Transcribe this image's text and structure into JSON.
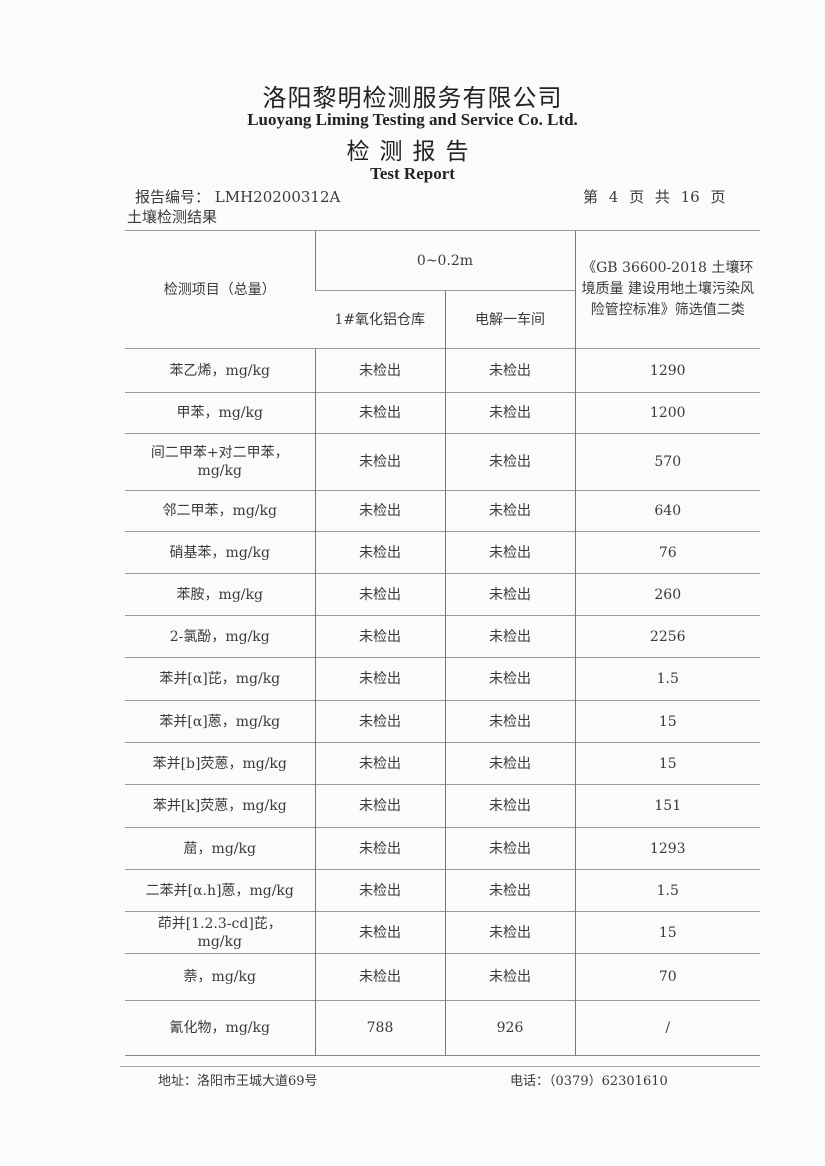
{
  "header": {
    "company_cn": "洛阳黎明检测服务有限公司",
    "company_en": "Luoyang Liming Testing and Service Co. Ltd.",
    "title_cn": "检测报告",
    "title_en": "Test Report",
    "report_no": "报告编号： LMH20200312A",
    "page_info": "第 4 页 共 16 页",
    "section": "土壤检测结果"
  },
  "table": {
    "col_item": "检测项目（总量）",
    "depth": "0~0.2m",
    "col_site1": "1#氧化铝仓库",
    "col_site2": "电解一车间",
    "col_standard": "《GB 36600-2018 土壤环境质量 建设用地土壤污染风险管控标准》筛选值二类",
    "rows": [
      {
        "item": "苯乙烯，mg/kg",
        "site1": "未检出",
        "site2": "未检出",
        "standard": "1290"
      },
      {
        "item": "甲苯，mg/kg",
        "site1": "未检出",
        "site2": "未检出",
        "standard": "1200"
      },
      {
        "item": "间二甲苯+对二甲苯，mg/kg",
        "site1": "未检出",
        "site2": "未检出",
        "standard": "570"
      },
      {
        "item": "邻二甲苯，mg/kg",
        "site1": "未检出",
        "site2": "未检出",
        "standard": "640"
      },
      {
        "item": "硝基苯，mg/kg",
        "site1": "未检出",
        "site2": "未检出",
        "standard": "76"
      },
      {
        "item": "苯胺，mg/kg",
        "site1": "未检出",
        "site2": "未检出",
        "standard": "260"
      },
      {
        "item": "2-氯酚，mg/kg",
        "site1": "未检出",
        "site2": "未检出",
        "standard": "2256"
      },
      {
        "item": "苯并[α]芘，mg/kg",
        "site1": "未检出",
        "site2": "未检出",
        "standard": "1.5"
      },
      {
        "item": "苯并[α]蒽，mg/kg",
        "site1": "未检出",
        "site2": "未检出",
        "standard": "15"
      },
      {
        "item": "苯并[b]荧蒽，mg/kg",
        "site1": "未检出",
        "site2": "未检出",
        "standard": "15"
      },
      {
        "item": "苯并[k]荧蒽，mg/kg",
        "site1": "未检出",
        "site2": "未检出",
        "standard": "151"
      },
      {
        "item": "䓛，mg/kg",
        "site1": "未检出",
        "site2": "未检出",
        "standard": "1293"
      },
      {
        "item": "二苯并[α.h]蒽，mg/kg",
        "site1": "未检出",
        "site2": "未检出",
        "standard": "1.5"
      },
      {
        "item": "茚并[1.2.3-cd]芘，mg/kg",
        "site1": "未检出",
        "site2": "未检出",
        "standard": "15"
      },
      {
        "item": "萘，mg/kg",
        "site1": "未检出",
        "site2": "未检出",
        "standard": "70"
      },
      {
        "item": "氰化物，mg/kg",
        "site1": "788",
        "site2": "926",
        "standard": "/"
      }
    ]
  },
  "footer": {
    "address": "地址：洛阳市王城大道69号",
    "phone": "电话：（0379）62301610"
  }
}
